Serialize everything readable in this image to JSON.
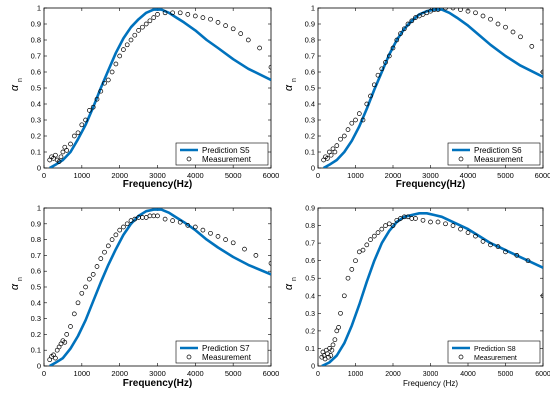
{
  "chart_data": [
    {
      "type": "line",
      "xlabel": "Frequency(Hz)",
      "ylabel": "α",
      "ylabel_sub": "n",
      "xlim": [
        0,
        6000
      ],
      "ylim": [
        0,
        1
      ],
      "x_ticks": [
        "0",
        "1000",
        "2000",
        "3000",
        "4000",
        "5000",
        "6000"
      ],
      "y_ticks": [
        "0",
        "0.1",
        "0.2",
        "0.3",
        "0.4",
        "0.5",
        "0.6",
        "0.7",
        "0.8",
        "0.9",
        "1"
      ],
      "legend_position": "bottom-right",
      "series": [
        {
          "name": "Prediction S5",
          "style": "line",
          "color": "#0072bd",
          "x": [
            150,
            300,
            500,
            700,
            900,
            1100,
            1300,
            1500,
            1700,
            1900,
            2100,
            2300,
            2500,
            2700,
            2900,
            3000,
            3100,
            3300,
            3500,
            3700,
            4000,
            4300,
            4600,
            5000,
            5400,
            6000
          ],
          "y": [
            0.0,
            0.02,
            0.05,
            0.1,
            0.18,
            0.27,
            0.38,
            0.5,
            0.61,
            0.72,
            0.81,
            0.88,
            0.93,
            0.97,
            0.99,
            0.99,
            0.99,
            0.97,
            0.94,
            0.91,
            0.86,
            0.8,
            0.75,
            0.68,
            0.62,
            0.55
          ]
        },
        {
          "name": "Measurement",
          "style": "markers",
          "color": "#000000",
          "x": [
            150,
            200,
            250,
            300,
            350,
            400,
            450,
            500,
            550,
            600,
            700,
            800,
            900,
            1000,
            1100,
            1200,
            1300,
            1400,
            1500,
            1600,
            1700,
            1800,
            1900,
            2000,
            2100,
            2200,
            2300,
            2400,
            2500,
            2600,
            2700,
            2800,
            2900,
            3000,
            3200,
            3400,
            3600,
            3800,
            4000,
            4200,
            4400,
            4600,
            4800,
            5000,
            5200,
            5400,
            5700,
            6000
          ],
          "y": [
            0.05,
            0.07,
            0.06,
            0.08,
            0.05,
            0.04,
            0.07,
            0.1,
            0.13,
            0.11,
            0.15,
            0.2,
            0.22,
            0.27,
            0.3,
            0.36,
            0.38,
            0.43,
            0.48,
            0.53,
            0.55,
            0.6,
            0.65,
            0.7,
            0.74,
            0.77,
            0.8,
            0.83,
            0.86,
            0.88,
            0.9,
            0.92,
            0.94,
            0.96,
            0.97,
            0.97,
            0.97,
            0.96,
            0.95,
            0.94,
            0.93,
            0.91,
            0.89,
            0.87,
            0.84,
            0.8,
            0.75,
            0.63
          ]
        }
      ]
    },
    {
      "type": "line",
      "xlabel": "Frequency(Hz)",
      "ylabel": "α",
      "ylabel_sub": "n",
      "xlim": [
        0,
        6000
      ],
      "ylim": [
        0,
        1
      ],
      "x_ticks": [
        "0",
        "1000",
        "2000",
        "3000",
        "4000",
        "5000",
        "6000"
      ],
      "y_ticks": [
        "0",
        "0.1",
        "0.2",
        "0.3",
        "0.4",
        "0.5",
        "0.6",
        "0.7",
        "0.8",
        "0.9",
        "1"
      ],
      "legend_position": "bottom-right",
      "series": [
        {
          "name": "Prediction S6",
          "style": "line",
          "color": "#0072bd",
          "x": [
            150,
            300,
            500,
            700,
            900,
            1100,
            1300,
            1500,
            1700,
            1900,
            2100,
            2300,
            2500,
            2700,
            2900,
            3100,
            3200,
            3300,
            3500,
            3700,
            4000,
            4300,
            4600,
            5000,
            5400,
            6000
          ],
          "y": [
            0.0,
            0.02,
            0.05,
            0.1,
            0.17,
            0.26,
            0.37,
            0.49,
            0.6,
            0.71,
            0.8,
            0.87,
            0.92,
            0.96,
            0.98,
            0.99,
            0.99,
            0.99,
            0.97,
            0.94,
            0.89,
            0.83,
            0.77,
            0.7,
            0.64,
            0.57
          ]
        },
        {
          "name": "Measurement",
          "style": "markers",
          "color": "#000000",
          "x": [
            150,
            200,
            250,
            300,
            350,
            400,
            450,
            500,
            600,
            700,
            800,
            900,
            1000,
            1100,
            1200,
            1300,
            1400,
            1500,
            1600,
            1700,
            1800,
            1900,
            2000,
            2100,
            2200,
            2300,
            2400,
            2500,
            2600,
            2700,
            2800,
            2900,
            3000,
            3100,
            3200,
            3400,
            3600,
            3800,
            4000,
            4200,
            4400,
            4600,
            4800,
            5000,
            5200,
            5400,
            5700,
            6000
          ],
          "y": [
            0.05,
            0.07,
            0.06,
            0.1,
            0.08,
            0.12,
            0.1,
            0.14,
            0.18,
            0.2,
            0.24,
            0.28,
            0.3,
            0.34,
            0.3,
            0.4,
            0.45,
            0.52,
            0.58,
            0.62,
            0.66,
            0.7,
            0.75,
            0.8,
            0.84,
            0.87,
            0.9,
            0.92,
            0.94,
            0.95,
            0.96,
            0.97,
            0.98,
            0.99,
            0.99,
            1.0,
            1.0,
            0.99,
            0.98,
            0.97,
            0.95,
            0.93,
            0.9,
            0.88,
            0.85,
            0.82,
            0.76,
            0.6
          ]
        }
      ]
    },
    {
      "type": "line",
      "xlabel": "Frequency(Hz)",
      "ylabel": "α",
      "ylabel_sub": "n",
      "xlim": [
        0,
        6000
      ],
      "ylim": [
        0,
        1
      ],
      "x_ticks": [
        "0",
        "1000",
        "2000",
        "3000",
        "4000",
        "5000",
        "6000"
      ],
      "y_ticks": [
        "0",
        "0.1",
        "0.2",
        "0.3",
        "0.4",
        "0.5",
        "0.6",
        "0.7",
        "0.8",
        "0.9",
        "1"
      ],
      "legend_position": "bottom-right",
      "series": [
        {
          "name": "Prediction S7",
          "style": "line",
          "color": "#0072bd",
          "x": [
            150,
            300,
            500,
            700,
            900,
            1100,
            1300,
            1500,
            1700,
            1900,
            2100,
            2300,
            2500,
            2700,
            2900,
            3000,
            3100,
            3300,
            3500,
            3700,
            4000,
            4300,
            4600,
            5000,
            5400,
            6000
          ],
          "y": [
            0.0,
            0.02,
            0.05,
            0.11,
            0.19,
            0.29,
            0.41,
            0.53,
            0.64,
            0.74,
            0.83,
            0.9,
            0.95,
            0.98,
            0.99,
            0.99,
            0.99,
            0.97,
            0.94,
            0.91,
            0.86,
            0.8,
            0.75,
            0.69,
            0.64,
            0.58
          ]
        },
        {
          "name": "Measurement",
          "style": "markers",
          "color": "#000000",
          "x": [
            150,
            200,
            250,
            300,
            350,
            400,
            450,
            500,
            550,
            600,
            700,
            800,
            900,
            1000,
            1100,
            1200,
            1300,
            1400,
            1500,
            1600,
            1700,
            1800,
            1900,
            2000,
            2100,
            2200,
            2300,
            2400,
            2500,
            2600,
            2700,
            2800,
            2900,
            3000,
            3200,
            3400,
            3600,
            3800,
            4000,
            4200,
            4400,
            4600,
            4800,
            5000,
            5300,
            5600,
            6000
          ],
          "y": [
            0.04,
            0.06,
            0.07,
            0.05,
            0.1,
            0.12,
            0.14,
            0.16,
            0.15,
            0.2,
            0.25,
            0.33,
            0.4,
            0.46,
            0.5,
            0.55,
            0.58,
            0.63,
            0.68,
            0.72,
            0.76,
            0.8,
            0.83,
            0.86,
            0.88,
            0.9,
            0.92,
            0.93,
            0.94,
            0.94,
            0.94,
            0.95,
            0.95,
            0.95,
            0.93,
            0.92,
            0.91,
            0.89,
            0.88,
            0.86,
            0.84,
            0.82,
            0.8,
            0.78,
            0.74,
            0.7,
            0.65
          ]
        }
      ]
    },
    {
      "type": "line",
      "xlabel": "Frequency (Hz)",
      "ylabel": "α",
      "ylabel_sub": "n",
      "xlim": [
        0,
        6000
      ],
      "ylim": [
        0,
        0.9
      ],
      "x_ticks": [
        "0",
        "1000",
        "2000",
        "3000",
        "4000",
        "5000",
        "6000"
      ],
      "y_ticks": [
        "0",
        "0.1",
        "0.2",
        "0.3",
        "0.4",
        "0.5",
        "0.6",
        "0.7",
        "0.8",
        "0.9"
      ],
      "legend_position": "bottom-right",
      "series": [
        {
          "name": "Prediction S8",
          "style": "line",
          "color": "#0072bd",
          "x": [
            100,
            300,
            500,
            700,
            900,
            1100,
            1300,
            1500,
            1700,
            1900,
            2100,
            2300,
            2500,
            2700,
            2900,
            3100,
            3300,
            3500,
            3700,
            4000,
            4300,
            4600,
            5000,
            5400,
            6000
          ],
          "y": [
            0.0,
            0.02,
            0.06,
            0.13,
            0.23,
            0.35,
            0.48,
            0.6,
            0.7,
            0.77,
            0.82,
            0.85,
            0.86,
            0.87,
            0.87,
            0.86,
            0.85,
            0.83,
            0.81,
            0.78,
            0.74,
            0.7,
            0.66,
            0.62,
            0.56
          ]
        },
        {
          "name": "Measurement",
          "style": "markers",
          "color": "#000000",
          "x": [
            100,
            130,
            160,
            190,
            220,
            250,
            280,
            310,
            340,
            370,
            400,
            450,
            500,
            550,
            600,
            700,
            800,
            900,
            1000,
            1100,
            1200,
            1300,
            1400,
            1500,
            1600,
            1700,
            1800,
            1900,
            2000,
            2100,
            2200,
            2300,
            2400,
            2500,
            2600,
            2800,
            3000,
            3200,
            3400,
            3600,
            3800,
            4000,
            4200,
            4400,
            4600,
            4800,
            5000,
            5300,
            5600,
            6000
          ],
          "y": [
            0.05,
            0.08,
            0.06,
            0.04,
            0.09,
            0.07,
            0.05,
            0.1,
            0.06,
            0.09,
            0.12,
            0.15,
            0.2,
            0.22,
            0.3,
            0.4,
            0.5,
            0.55,
            0.6,
            0.65,
            0.66,
            0.69,
            0.72,
            0.74,
            0.76,
            0.78,
            0.8,
            0.81,
            0.8,
            0.83,
            0.84,
            0.85,
            0.85,
            0.84,
            0.84,
            0.83,
            0.82,
            0.82,
            0.81,
            0.8,
            0.78,
            0.76,
            0.74,
            0.71,
            0.69,
            0.68,
            0.65,
            0.63,
            0.6,
            0.4
          ]
        }
      ]
    }
  ]
}
